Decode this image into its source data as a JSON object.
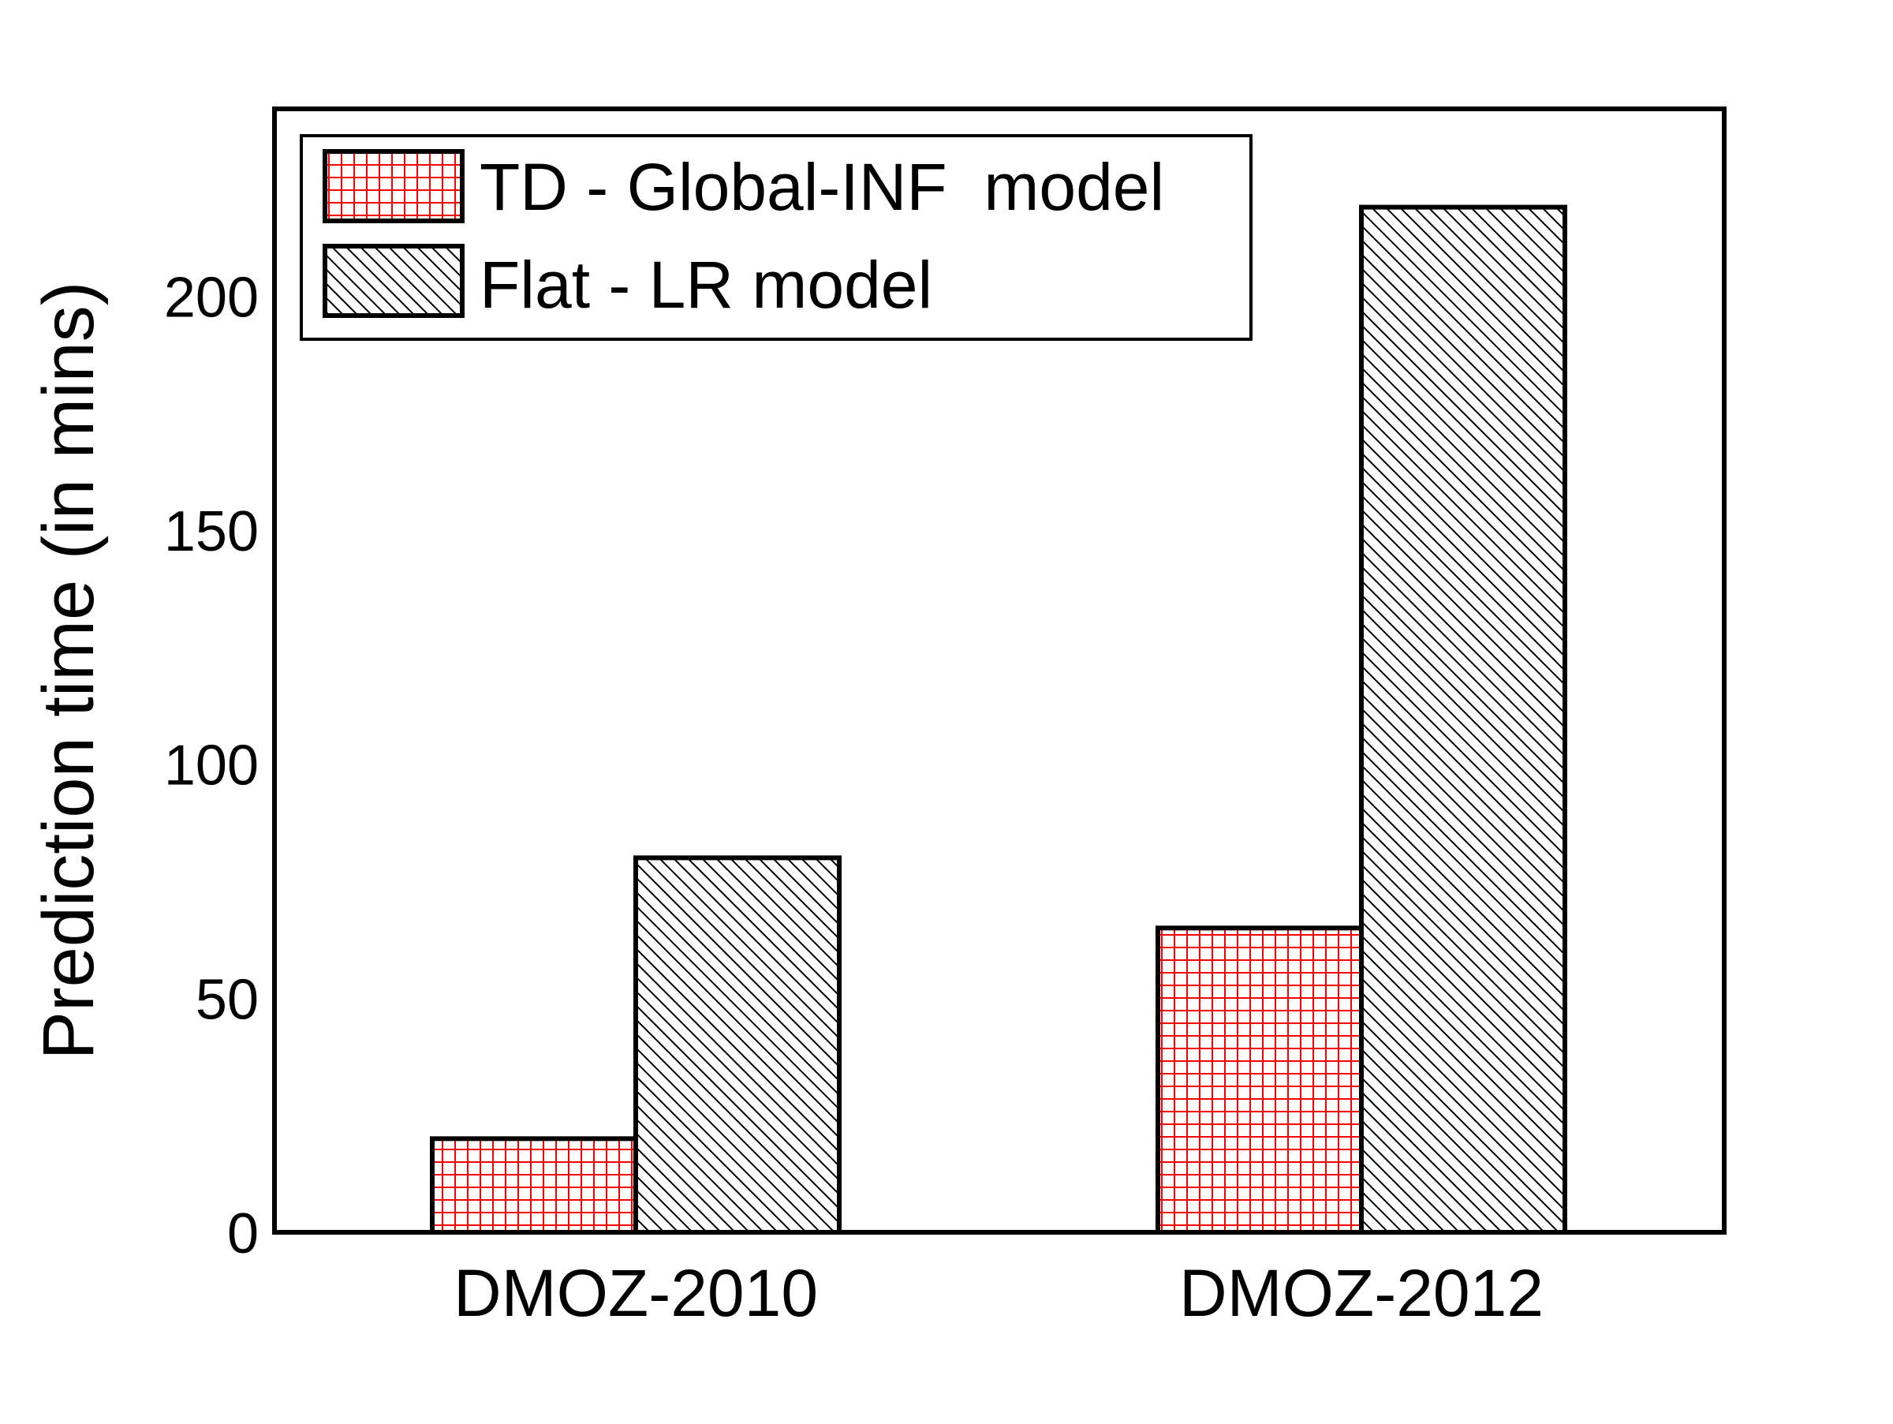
{
  "chart_data": {
    "type": "bar",
    "title": "",
    "xlabel": "",
    "ylabel": "Prediction time (in mins)",
    "categories": [
      "DMOZ-2010",
      "DMOZ-2012"
    ],
    "ylim": [
      0,
      240
    ],
    "yticks": [
      0,
      50,
      100,
      150,
      200
    ],
    "grid": false,
    "legend_position": "top-left",
    "series": [
      {
        "name": "TD - Global-INF  model",
        "values": [
          20,
          65
        ],
        "pattern": "grid",
        "color": "#ff0000"
      },
      {
        "name": "Flat - LR model",
        "values": [
          80,
          219
        ],
        "pattern": "diagonal",
        "color": "#000000"
      }
    ]
  }
}
